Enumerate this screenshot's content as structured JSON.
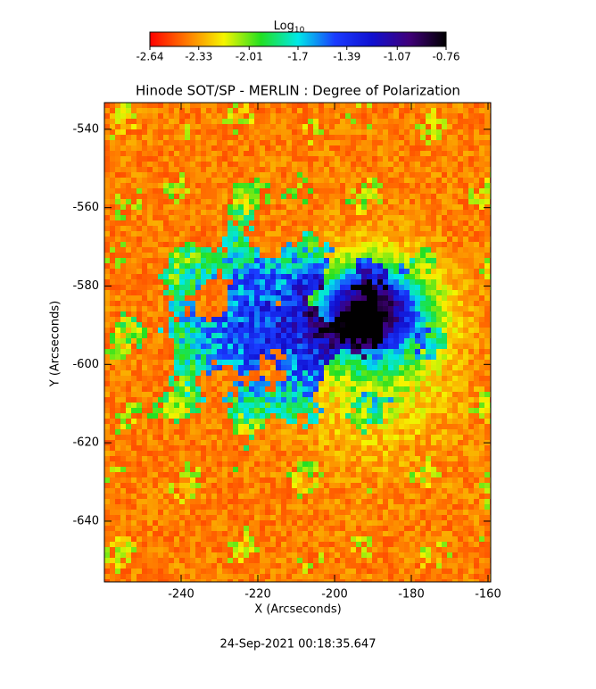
{
  "chart_data": {
    "type": "image",
    "title": "Hinode SOT/SP - MERLIN : Degree of Polarization",
    "x_label": "X (Arcseconds)",
    "y_label": "Y (Arcseconds)",
    "footer": "24-Sep-2021 00:18:35.647",
    "xlim": [
      -260,
      -159.3
    ],
    "ylim": [
      -655.5,
      -533.2
    ],
    "xticks": [
      -240,
      -220,
      -200,
      -180,
      -160
    ],
    "yticks": [
      -540,
      -560,
      -580,
      -600,
      -620,
      -640
    ],
    "colorbar": {
      "label": "Log",
      "label_sub": "10",
      "lim": [
        -2.64,
        -0.76
      ],
      "ticks": [
        -2.64,
        -2.33,
        -2.01,
        -1.7,
        -1.39,
        -1.07,
        -0.76
      ],
      "colormap": [
        "#ff0000",
        "#ff7a00",
        "#f5f500",
        "#22e022",
        "#00e8e8",
        "#1a3cff",
        "#1010d0",
        "#40007a",
        "#000000"
      ]
    }
  }
}
